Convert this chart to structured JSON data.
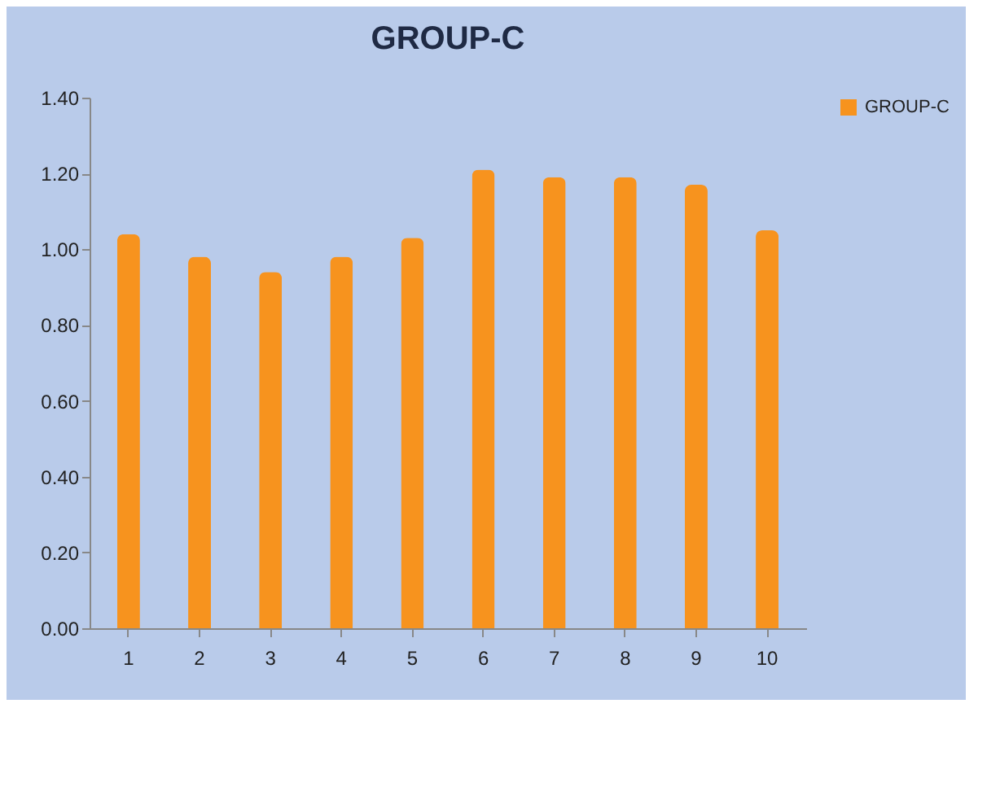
{
  "chart_data": {
    "type": "bar",
    "title": "GROUP-C",
    "categories": [
      "1",
      "2",
      "3",
      "4",
      "5",
      "6",
      "7",
      "8",
      "9",
      "10"
    ],
    "series": [
      {
        "name": "GROUP-C",
        "color": "#f7931e",
        "values": [
          1.04,
          0.98,
          0.94,
          0.98,
          1.03,
          1.21,
          1.19,
          1.19,
          1.17,
          1.05
        ]
      }
    ],
    "ylim": [
      0,
      1.4
    ],
    "yticks": [
      {
        "value": 0,
        "label": "0.00"
      },
      {
        "value": 0.2,
        "label": "0.20"
      },
      {
        "value": 0.4,
        "label": "0.40"
      },
      {
        "value": 0.6,
        "label": "0.60"
      },
      {
        "value": 0.8,
        "label": "0.80"
      },
      {
        "value": 1,
        "label": "1.00"
      },
      {
        "value": 1.2,
        "label": "1.20"
      },
      {
        "value": 1.4,
        "label": "1.40"
      }
    ],
    "legend": "right"
  }
}
